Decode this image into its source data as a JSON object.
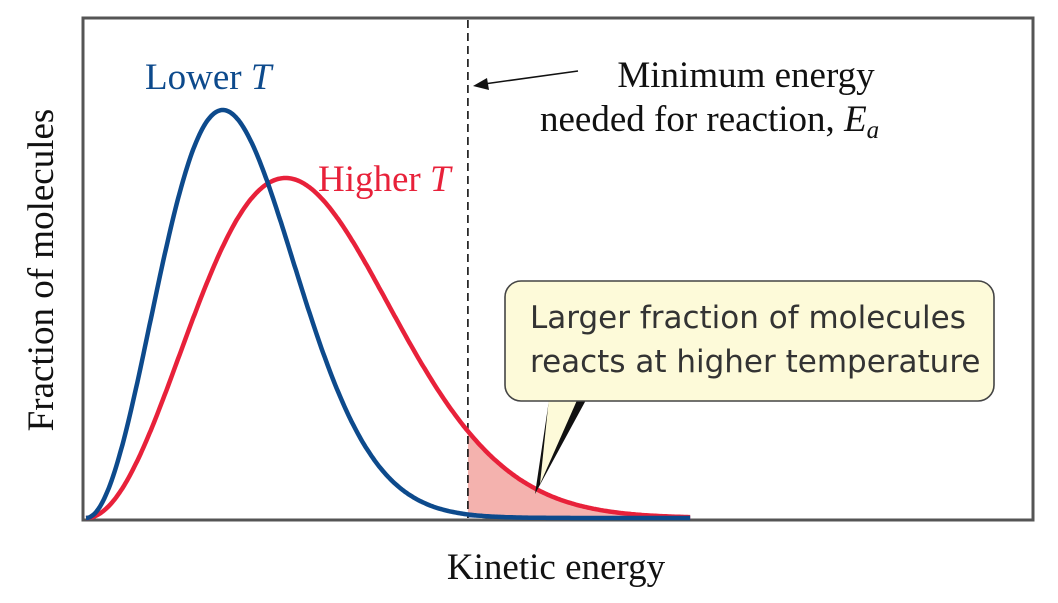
{
  "chart_data": {
    "type": "line",
    "xlabel": "Kinetic energy",
    "ylabel": "Fraction of molecules",
    "grid": false,
    "legend": "none",
    "series": [
      {
        "name": "Lower T",
        "label_main": "Lower ",
        "label_var": "T",
        "color": "#0d4a8c",
        "peak_x": 2.4,
        "peak_y": 0.96,
        "shape": "Maxwell-Boltzmann"
      },
      {
        "name": "Higher T",
        "label_main": "Higher ",
        "label_var": "T",
        "color": "#e8213a",
        "peak_x": 3.5,
        "peak_y": 0.8,
        "shape": "Maxwell-Boltzmann"
      }
    ],
    "threshold": {
      "x": 6.7,
      "label_line1": "Minimum energy",
      "label_line2": "needed for reaction, ",
      "label_symbol": "E",
      "label_subscript": "a"
    },
    "callout": {
      "line1": "Larger fraction of molecules",
      "line2": "reacts at higher temperature",
      "fill": "#fdfad9"
    },
    "shade_colors": {
      "higher": "#f4b2ae",
      "lower": "#9fb0d3"
    },
    "frame_color": "#555555"
  }
}
